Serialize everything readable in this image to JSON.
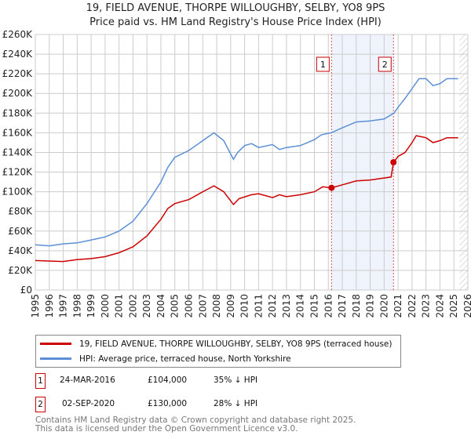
{
  "title": "19, FIELD AVENUE, THORPE WILLOUGHBY, SELBY, YO8 9PS",
  "subtitle": "Price paid vs. HM Land Registry's House Price Index (HPI)",
  "colors": {
    "property": "#cc0000",
    "hpi": "#5b8fd6",
    "shade": "#eef3fc"
  },
  "chart_data": {
    "type": "line",
    "xlim": [
      1995,
      2026
    ],
    "ylim": [
      0,
      260000
    ],
    "yticks": [
      {
        "v": 0,
        "label": "£0"
      },
      {
        "v": 20000,
        "label": "£20K"
      },
      {
        "v": 40000,
        "label": "£40K"
      },
      {
        "v": 60000,
        "label": "£60K"
      },
      {
        "v": 80000,
        "label": "£80K"
      },
      {
        "v": 100000,
        "label": "£100K"
      },
      {
        "v": 120000,
        "label": "£120K"
      },
      {
        "v": 140000,
        "label": "£140K"
      },
      {
        "v": 160000,
        "label": "£160K"
      },
      {
        "v": 180000,
        "label": "£180K"
      },
      {
        "v": 200000,
        "label": "£200K"
      },
      {
        "v": 220000,
        "label": "£220K"
      },
      {
        "v": 240000,
        "label": "£240K"
      },
      {
        "v": 260000,
        "label": "£260K"
      }
    ],
    "xticks": [
      "1995",
      "1996",
      "1997",
      "1998",
      "1999",
      "2000",
      "2001",
      "2002",
      "2003",
      "2004",
      "2005",
      "2006",
      "2007",
      "2008",
      "2009",
      "2010",
      "2011",
      "2012",
      "2013",
      "2014",
      "2015",
      "2016",
      "2017",
      "2018",
      "2019",
      "2020",
      "2021",
      "2022",
      "2023",
      "2024",
      "2025",
      "2026"
    ],
    "series": [
      {
        "name": "19, FIELD AVENUE, THORPE WILLOUGHBY, SELBY, YO8 9PS (terraced house)",
        "color": "#cc0000",
        "x": [
          1995,
          1997,
          1998,
          1999,
          2000,
          2001,
          2002,
          2003,
          2004,
          2004.5,
          2005,
          2006,
          2007,
          2007.8,
          2008.5,
          2009.2,
          2009.6,
          2010.5,
          2011,
          2012,
          2012.5,
          2013,
          2014,
          2015,
          2015.6,
          2016.23,
          2017,
          2018,
          2019,
          2020.5,
          2020.67,
          2021,
          2021.5,
          2022,
          2022.3,
          2023,
          2023.5,
          2024,
          2024.5,
          2025.3
        ],
        "y": [
          30000,
          29000,
          31000,
          32000,
          34000,
          38000,
          44000,
          55000,
          72000,
          83000,
          88000,
          92000,
          100000,
          106000,
          100000,
          87000,
          93000,
          97000,
          98000,
          94000,
          97000,
          95000,
          97000,
          100000,
          105000,
          104000,
          107000,
          111000,
          112000,
          115000,
          130000,
          136000,
          140000,
          150000,
          157000,
          155000,
          150000,
          152000,
          155000,
          155000
        ]
      },
      {
        "name": "HPI: Average price, terraced house, North Yorkshire",
        "color": "#5b8fd6",
        "x": [
          1995,
          1996,
          1997,
          1998,
          1999,
          2000,
          2001,
          2002,
          2003,
          2004,
          2004.5,
          2005,
          2006,
          2007,
          2007.8,
          2008.5,
          2009.2,
          2009.5,
          2010,
          2010.5,
          2011,
          2012,
          2012.5,
          2013,
          2014,
          2015,
          2015.5,
          2016.2,
          2017,
          2018,
          2019,
          2020,
          2020.7,
          2021,
          2021.5,
          2022,
          2022.5,
          2023,
          2023.5,
          2024,
          2024.5,
          2025.3
        ],
        "y": [
          46000,
          45000,
          47000,
          48000,
          51000,
          54000,
          60000,
          70000,
          88000,
          110000,
          125000,
          135000,
          142000,
          152000,
          160000,
          152000,
          133000,
          140000,
          147000,
          149000,
          145000,
          148000,
          143000,
          145000,
          147000,
          153000,
          158000,
          160000,
          165000,
          171000,
          172000,
          174000,
          180000,
          186000,
          195000,
          205000,
          215000,
          215000,
          208000,
          210000,
          215000,
          215000
        ]
      }
    ],
    "sales": [
      {
        "label": "1",
        "x": 2016.23,
        "y": 104000
      },
      {
        "label": "2",
        "x": 2020.67,
        "y": 130000
      }
    ],
    "hatch_from": 2025.4
  },
  "legend": {
    "property": "19, FIELD AVENUE, THORPE WILLOUGHBY, SELBY, YO8 9PS (terraced house)",
    "hpi": "HPI: Average price, terraced house, North Yorkshire"
  },
  "transactions": [
    {
      "num": "1",
      "date": "24-MAR-2016",
      "price": "£104,000",
      "hpi": "35% ↓ HPI"
    },
    {
      "num": "2",
      "date": "02-SEP-2020",
      "price": "£130,000",
      "hpi": "28% ↓ HPI"
    }
  ],
  "footer": {
    "line1": "Contains HM Land Registry data © Crown copyright and database right 2025.",
    "line2": "This data is licensed under the Open Government Licence v3.0."
  }
}
